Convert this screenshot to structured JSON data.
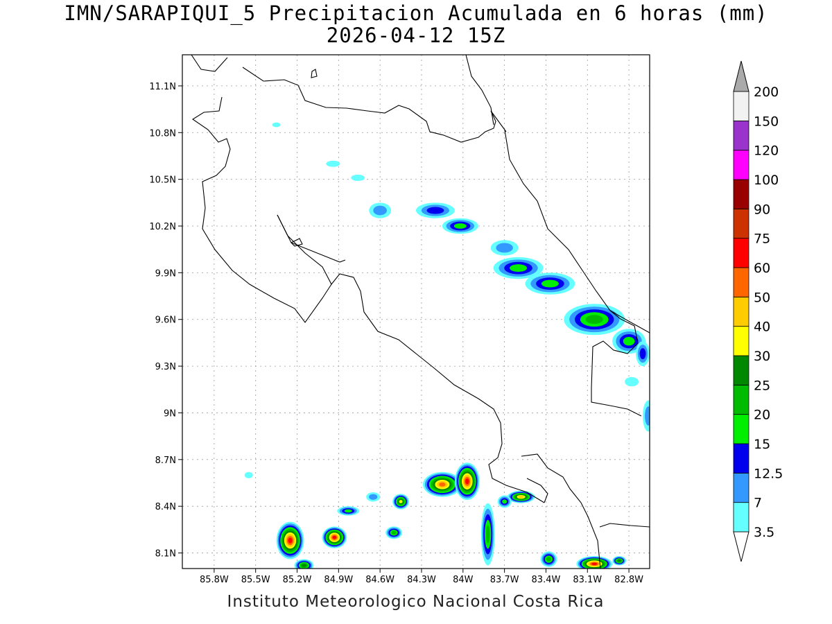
{
  "header": {
    "title": "IMN/SARAPIQUI_5 Precipitacion Acumulada en 6 horas (mm)",
    "subtitle": "2026-04-12 15Z"
  },
  "footer": "Instituto Meteorologico Nacional Costa Rica",
  "map": {
    "lon_range": [
      -86.03,
      -82.65
    ],
    "lat_range": [
      8.0,
      11.3
    ],
    "lon_ticks": [
      {
        "v": -85.8,
        "label": "85.8W"
      },
      {
        "v": -85.5,
        "label": "85.5W"
      },
      {
        "v": -85.2,
        "label": "85.2W"
      },
      {
        "v": -84.9,
        "label": "84.9W"
      },
      {
        "v": -84.6,
        "label": "84.6W"
      },
      {
        "v": -84.3,
        "label": "84.3W"
      },
      {
        "v": -84.0,
        "label": "84W"
      },
      {
        "v": -83.7,
        "label": "83.7W"
      },
      {
        "v": -83.4,
        "label": "83.4W"
      },
      {
        "v": -83.1,
        "label": "83.1W"
      },
      {
        "v": -82.8,
        "label": "82.8W"
      }
    ],
    "lat_ticks": [
      {
        "v": 11.1,
        "label": "11.1N"
      },
      {
        "v": 10.8,
        "label": "10.8N"
      },
      {
        "v": 10.5,
        "label": "10.5N"
      },
      {
        "v": 10.2,
        "label": "10.2N"
      },
      {
        "v": 9.9,
        "label": "9.9N"
      },
      {
        "v": 9.6,
        "label": "9.6N"
      },
      {
        "v": 9.3,
        "label": "9.3N"
      },
      {
        "v": 9.0,
        "label": "9N"
      },
      {
        "v": 8.7,
        "label": "8.7N"
      },
      {
        "v": 8.4,
        "label": "8.4N"
      },
      {
        "v": 8.1,
        "label": "8.1N"
      }
    ],
    "grid": true
  },
  "colorbar": {
    "levels": [
      "3.5",
      "7",
      "12.5",
      "15",
      "20",
      "25",
      "30",
      "40",
      "50",
      "60",
      "75",
      "90",
      "100",
      "120",
      "150",
      "200"
    ],
    "colors": [
      "#66ffff",
      "#3399ff",
      "#0000ee",
      "#00ee00",
      "#00bb00",
      "#008800",
      "#ffff00",
      "#ffcc00",
      "#ff6600",
      "#ff0000",
      "#cc3300",
      "#990000",
      "#ff00ff",
      "#9933cc",
      "#f2f2f2"
    ],
    "over_color": "#aaaaaa",
    "under_color": "#ffffff"
  },
  "precip_cells": [
    {
      "lon": -85.35,
      "lat": 10.85,
      "rx": 0.03,
      "ry": 0.015,
      "level": 1
    },
    {
      "lon": -84.94,
      "lat": 10.6,
      "rx": 0.05,
      "ry": 0.02,
      "level": 1
    },
    {
      "lon": -84.76,
      "lat": 10.51,
      "rx": 0.05,
      "ry": 0.02,
      "level": 1
    },
    {
      "lon": -84.6,
      "lat": 10.3,
      "rx": 0.08,
      "ry": 0.05,
      "level": 2
    },
    {
      "lon": -84.2,
      "lat": 10.3,
      "rx": 0.14,
      "ry": 0.05,
      "level": 3
    },
    {
      "lon": -84.02,
      "lat": 10.2,
      "rx": 0.13,
      "ry": 0.05,
      "level": 4
    },
    {
      "lon": -83.7,
      "lat": 10.06,
      "rx": 0.1,
      "ry": 0.05,
      "level": 2
    },
    {
      "lon": -83.6,
      "lat": 9.93,
      "rx": 0.18,
      "ry": 0.07,
      "level": 4
    },
    {
      "lon": -83.37,
      "lat": 9.83,
      "rx": 0.18,
      "ry": 0.07,
      "level": 4
    },
    {
      "lon": -83.05,
      "lat": 9.6,
      "rx": 0.22,
      "ry": 0.1,
      "level": 5
    },
    {
      "lon": -82.8,
      "lat": 9.46,
      "rx": 0.12,
      "ry": 0.08,
      "level": 4
    },
    {
      "lon": -82.7,
      "lat": 9.38,
      "rx": 0.05,
      "ry": 0.08,
      "level": 3
    },
    {
      "lon": -82.78,
      "lat": 9.2,
      "rx": 0.05,
      "ry": 0.03,
      "level": 1
    },
    {
      "lon": -82.66,
      "lat": 8.98,
      "rx": 0.04,
      "ry": 0.1,
      "level": 2
    },
    {
      "lon": -85.55,
      "lat": 8.6,
      "rx": 0.03,
      "ry": 0.02,
      "level": 1
    },
    {
      "lon": -85.25,
      "lat": 8.18,
      "rx": 0.1,
      "ry": 0.12,
      "level": 10
    },
    {
      "lon": -85.15,
      "lat": 8.02,
      "rx": 0.07,
      "ry": 0.04,
      "level": 6
    },
    {
      "lon": -84.93,
      "lat": 8.2,
      "rx": 0.09,
      "ry": 0.07,
      "level": 10
    },
    {
      "lon": -84.83,
      "lat": 8.37,
      "rx": 0.08,
      "ry": 0.03,
      "level": 4
    },
    {
      "lon": -84.65,
      "lat": 8.46,
      "rx": 0.05,
      "ry": 0.03,
      "level": 2
    },
    {
      "lon": -84.5,
      "lat": 8.23,
      "rx": 0.06,
      "ry": 0.04,
      "level": 5
    },
    {
      "lon": -84.45,
      "lat": 8.43,
      "rx": 0.06,
      "ry": 0.05,
      "level": 7
    },
    {
      "lon": -84.15,
      "lat": 8.54,
      "rx": 0.14,
      "ry": 0.08,
      "level": 9
    },
    {
      "lon": -83.97,
      "lat": 8.56,
      "rx": 0.09,
      "ry": 0.12,
      "level": 10
    },
    {
      "lon": -83.82,
      "lat": 8.22,
      "rx": 0.05,
      "ry": 0.2,
      "level": 5
    },
    {
      "lon": -83.58,
      "lat": 8.46,
      "rx": 0.1,
      "ry": 0.04,
      "level": 8
    },
    {
      "lon": -83.7,
      "lat": 8.43,
      "rx": 0.05,
      "ry": 0.04,
      "level": 4
    },
    {
      "lon": -83.38,
      "lat": 8.06,
      "rx": 0.06,
      "ry": 0.05,
      "level": 5
    },
    {
      "lon": -83.05,
      "lat": 8.03,
      "rx": 0.13,
      "ry": 0.05,
      "level": 10
    },
    {
      "lon": -82.87,
      "lat": 8.05,
      "rx": 0.05,
      "ry": 0.03,
      "level": 6
    }
  ]
}
